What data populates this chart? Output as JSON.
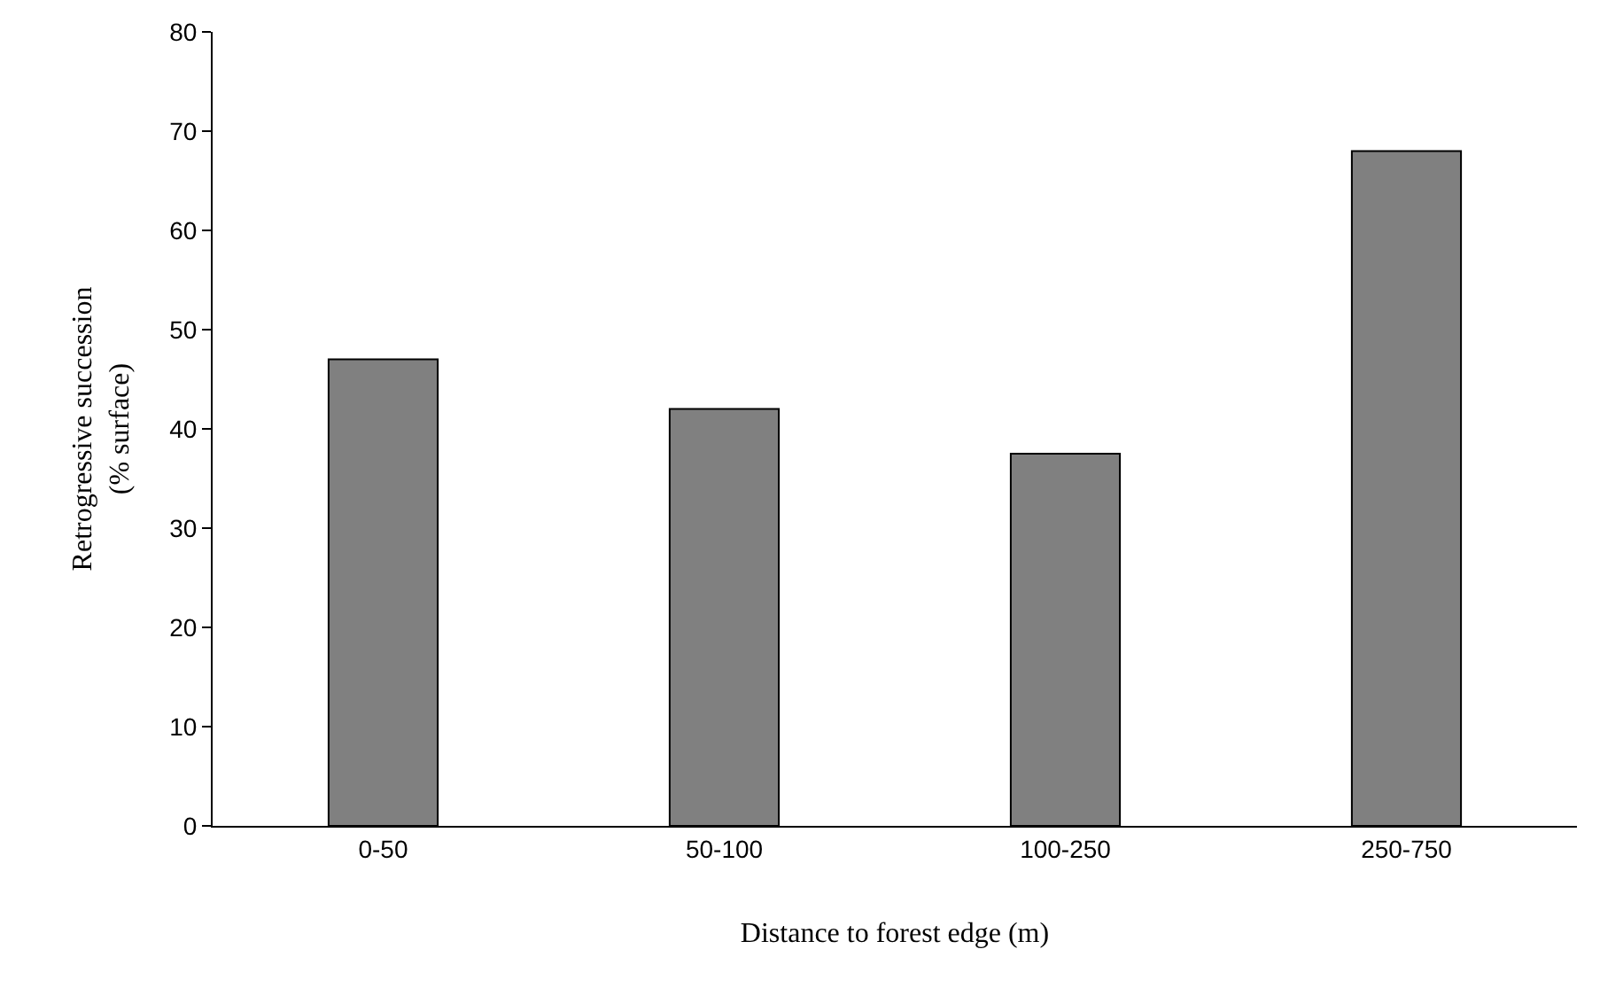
{
  "chart_data": {
    "type": "bar",
    "xlabel": "Distance to forest edge (m)",
    "ylabel": "Retrogressive succession\n(% surface)",
    "categories": [
      "0-50",
      "50-100",
      "100-250",
      "250-750"
    ],
    "values": [
      47,
      42,
      37.5,
      68
    ],
    "color": "#808080",
    "ylim": [
      0,
      80
    ],
    "yticks": [
      0,
      10,
      20,
      30,
      40,
      50,
      60,
      70,
      80
    ],
    "grid": false
  }
}
